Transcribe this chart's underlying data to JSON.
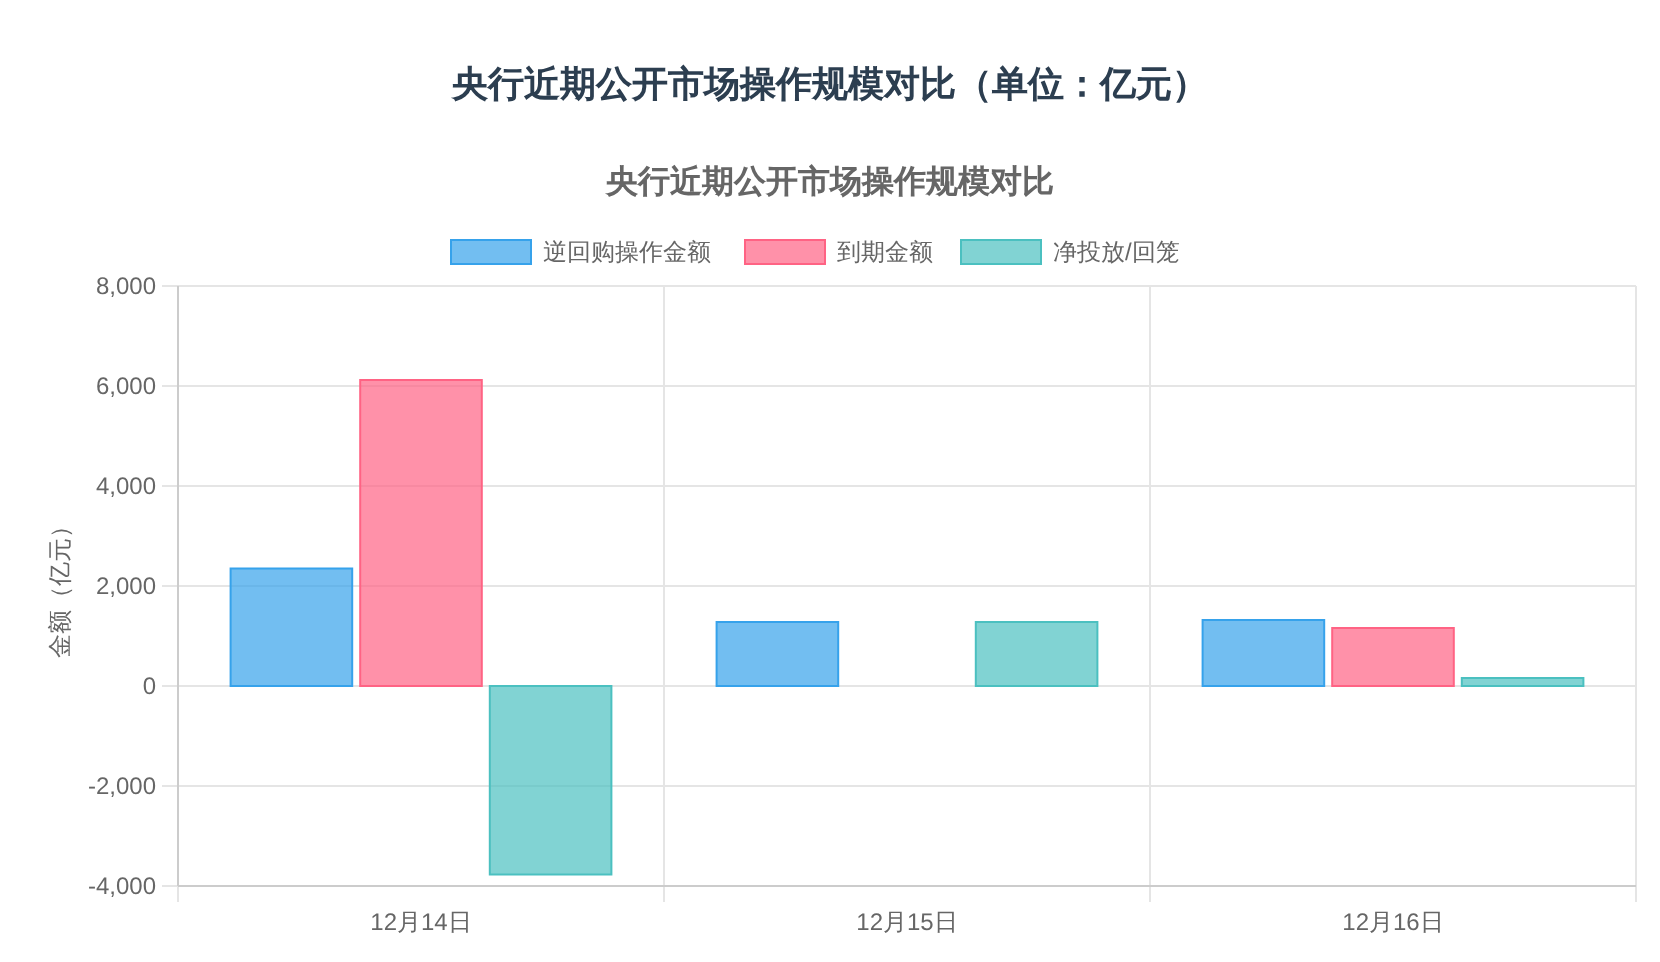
{
  "chart_data": {
    "type": "bar",
    "title": "央行近期公开市场操作规模对比（单位：亿元）",
    "subtitle": "央行近期公开市场操作规模对比",
    "ylabel": "金额（亿元）",
    "categories": [
      "12月14日",
      "12月15日",
      "12月16日"
    ],
    "series": [
      {
        "name": "逆回购操作金额",
        "color": "#36a2eb",
        "values": [
          2350,
          1280,
          1320
        ]
      },
      {
        "name": "到期金额",
        "color": "#ff6384",
        "values": [
          6120,
          0,
          1160
        ]
      },
      {
        "name": "净投放/回笼",
        "color": "#4bc0c0",
        "values": [
          -3770,
          1280,
          160
        ]
      }
    ],
    "ylim": [
      -4000,
      8000
    ],
    "yticks": [
      {
        "value": -4000,
        "label": "-4,000"
      },
      {
        "value": -2000,
        "label": "-2,000"
      },
      0,
      {
        "value": 2000,
        "label": "2,000"
      },
      {
        "value": 4000,
        "label": "4,000"
      },
      {
        "value": 6000,
        "label": "6,000"
      },
      {
        "value": 8000,
        "label": "8,000"
      }
    ],
    "grid": true,
    "legend": "top"
  }
}
